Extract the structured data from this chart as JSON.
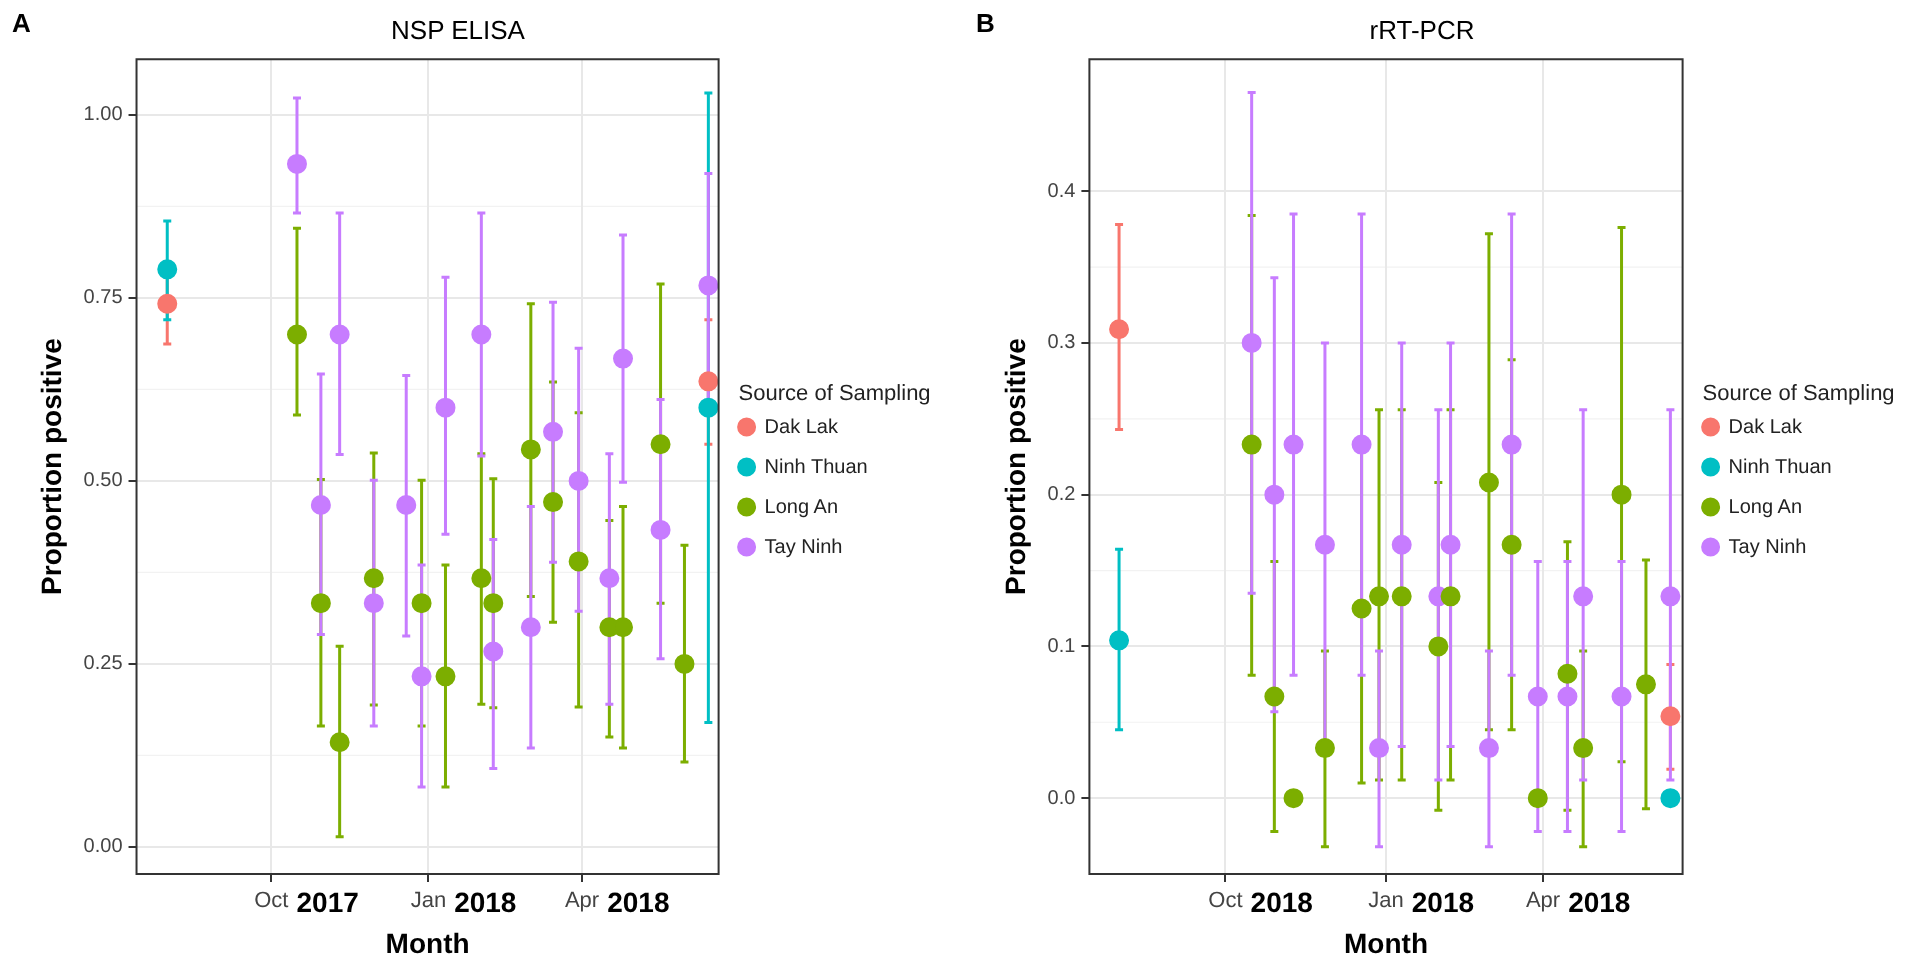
{
  "chart_data": [
    {
      "type": "scatter",
      "title": "NSP ELISA",
      "xlabel": "Month",
      "ylabel": "Proportion positive",
      "legend_title": "Source of Sampling",
      "annotations": [
        "A",
        "2017",
        "2018",
        "2018"
      ],
      "legend": "right",
      "grid": true,
      "marker": "circle",
      "xlim": [
        "2017-07-14",
        "2018-06-20"
      ],
      "ylim": [
        -0.037,
        1.076
      ],
      "yticks": [
        {
          "value": 0,
          "label": "0.00"
        },
        {
          "value": 0.25,
          "label": "0.25"
        },
        {
          "value": 0.5,
          "label": "0.50"
        },
        {
          "value": 0.75,
          "label": "0.75"
        },
        {
          "value": 1,
          "label": "1.00"
        }
      ],
      "xticks": [
        {
          "value": "2017-10-01",
          "label": "Oct"
        },
        {
          "value": "2018-01-01",
          "label": "Jan"
        },
        {
          "value": "2018-04-01",
          "label": "Apr"
        }
      ],
      "series": [
        {
          "name": "Dak Lak",
          "color": "#f8766d",
          "x": [
            "2017-08-01",
            "2018-06-14"
          ],
          "values": [
            0.742,
            0.636
          ],
          "errors": [
            [
              0.687,
              0.795
            ],
            [
              0.55,
              0.72
            ]
          ]
        },
        {
          "name": "Ninh Thuan",
          "color": "#00bfc4",
          "x": [
            "2017-08-01",
            "2018-06-14"
          ],
          "values": [
            0.789,
            0.6
          ],
          "errors": [
            [
              0.72,
              0.855
            ],
            [
              0.17,
              1.03
            ]
          ]
        },
        {
          "name": "Long An",
          "color": "#7cae00",
          "x": [
            "2017-10-16",
            "2017-10-30",
            "2017-11-10",
            "2017-11-30",
            "2017-12-28",
            "2018-01-11",
            "2018-02-01",
            "2018-02-08",
            "2018-03-02",
            "2018-03-15",
            "2018-03-30",
            "2018-04-17",
            "2018-04-25",
            "2018-05-17",
            "2018-05-31"
          ],
          "values": [
            0.7,
            0.333,
            0.143,
            0.367,
            0.333,
            0.233,
            0.367,
            0.333,
            0.543,
            0.471,
            0.39,
            0.3,
            0.3,
            0.55,
            0.25
          ],
          "errors": [
            [
              0.59,
              0.845
            ],
            [
              0.165,
              0.502
            ],
            [
              0.014,
              0.274
            ],
            [
              0.194,
              0.538
            ],
            [
              0.165,
              0.501
            ],
            [
              0.082,
              0.385
            ],
            [
              0.195,
              0.537
            ],
            [
              0.19,
              0.503
            ],
            [
              0.342,
              0.742
            ],
            [
              0.307,
              0.635
            ],
            [
              0.191,
              0.593
            ],
            [
              0.15,
              0.446
            ],
            [
              0.135,
              0.465
            ],
            [
              0.333,
              0.769
            ],
            [
              0.116,
              0.412
            ]
          ]
        },
        {
          "name": "Tay Ninh",
          "color": "#c77cff",
          "x": [
            "2017-10-16",
            "2017-10-30",
            "2017-11-10",
            "2017-11-30",
            "2017-12-19",
            "2017-12-28",
            "2018-01-11",
            "2018-02-01",
            "2018-02-08",
            "2018-03-02",
            "2018-03-15",
            "2018-03-30",
            "2018-04-17",
            "2018-04-25",
            "2018-05-17",
            "2018-06-14"
          ],
          "values": [
            0.933,
            0.467,
            0.7,
            0.333,
            0.467,
            0.233,
            0.6,
            0.7,
            0.267,
            0.3,
            0.567,
            0.5,
            0.367,
            0.667,
            0.433,
            0.767
          ],
          "errors": [
            [
              0.866,
              1.023
            ],
            [
              0.29,
              0.646
            ],
            [
              0.536,
              0.866
            ],
            [
              0.165,
              0.501
            ],
            [
              0.288,
              0.644
            ],
            [
              0.082,
              0.385
            ],
            [
              0.427,
              0.778
            ],
            [
              0.534,
              0.866
            ],
            [
              0.107,
              0.42
            ],
            [
              0.135,
              0.465
            ],
            [
              0.389,
              0.744
            ],
            [
              0.322,
              0.681
            ],
            [
              0.195,
              0.537
            ],
            [
              0.498,
              0.836
            ],
            [
              0.257,
              0.611
            ],
            [
              0.61,
              0.92
            ]
          ]
        }
      ]
    },
    {
      "type": "scatter",
      "title": "rRT-PCR",
      "xlabel": "Month",
      "ylabel": "Proportion positive",
      "legend_title": "Source of Sampling",
      "annotations": [
        "B",
        "2018",
        "2018",
        "2018"
      ],
      "legend": "right",
      "grid": true,
      "marker": "circle",
      "xlim": [
        "2017-07-15",
        "2018-06-20"
      ],
      "ylim": [
        -0.05,
        0.487
      ],
      "yticks": [
        {
          "value": 0,
          "label": "0.0"
        },
        {
          "value": 0.1,
          "label": "0.1"
        },
        {
          "value": 0.2,
          "label": "0.2"
        },
        {
          "value": 0.3,
          "label": "0.3"
        },
        {
          "value": 0.4,
          "label": "0.4"
        }
      ],
      "xticks": [
        {
          "value": "2017-10-01",
          "label": "Oct"
        },
        {
          "value": "2018-01-01",
          "label": "Jan"
        },
        {
          "value": "2018-04-01",
          "label": "Apr"
        }
      ],
      "series": [
        {
          "name": "Dak Lak",
          "color": "#f8766d",
          "x": [
            "2017-08-01",
            "2018-06-13"
          ],
          "values": [
            0.309,
            0.054
          ],
          "errors": [
            [
              0.243,
              0.378
            ],
            [
              0.019,
              0.088
            ]
          ]
        },
        {
          "name": "Ninh Thuan",
          "color": "#00bfc4",
          "x": [
            "2017-08-01",
            "2018-06-13"
          ],
          "values": [
            0.104,
            0
          ],
          "errors": [
            [
              0.045,
              0.164
            ],
            null
          ]
        },
        {
          "name": "Long An",
          "color": "#7cae00",
          "x": [
            "2017-10-16",
            "2017-10-29",
            "2017-11-09",
            "2017-11-27",
            "2017-12-18",
            "2017-12-28",
            "2018-01-10",
            "2018-01-31",
            "2018-02-07",
            "2018-03-01",
            "2018-03-14",
            "2018-03-29",
            "2018-04-15",
            "2018-04-24",
            "2018-05-16",
            "2018-05-30"
          ],
          "values": [
            0.233,
            0.067,
            0,
            0.033,
            0.125,
            0.133,
            0.133,
            0.1,
            0.133,
            0.208,
            0.167,
            0,
            0.082,
            0.033,
            0.2,
            0.075
          ],
          "errors": [
            [
              0.081,
              0.384
            ],
            [
              -0.022,
              0.156
            ],
            null,
            [
              -0.032,
              0.097
            ],
            [
              0.01,
              0.23
            ],
            [
              0.012,
              0.256
            ],
            [
              0.012,
              0.256
            ],
            [
              -0.008,
              0.208
            ],
            [
              0.012,
              0.256
            ],
            [
              0.045,
              0.372
            ],
            [
              0.045,
              0.289
            ],
            null,
            [
              -0.008,
              0.169
            ],
            [
              -0.032,
              0.097
            ],
            [
              0.024,
              0.376
            ],
            [
              -0.007,
              0.157
            ]
          ]
        },
        {
          "name": "Tay Ninh",
          "color": "#c77cff",
          "x": [
            "2017-10-16",
            "2017-10-29",
            "2017-11-09",
            "2017-11-27",
            "2017-12-18",
            "2017-12-28",
            "2018-01-10",
            "2018-01-31",
            "2018-02-07",
            "2018-03-01",
            "2018-03-14",
            "2018-03-29",
            "2018-04-15",
            "2018-04-24",
            "2018-05-16",
            "2018-06-13"
          ],
          "values": [
            0.3,
            0.2,
            0.233,
            0.167,
            0.233,
            0.033,
            0.167,
            0.133,
            0.167,
            0.033,
            0.233,
            0.067,
            0.067,
            0.133,
            0.067,
            0.133
          ],
          "errors": [
            [
              0.135,
              0.465
            ],
            [
              0.057,
              0.343
            ],
            [
              0.081,
              0.385
            ],
            [
              0.035,
              0.3
            ],
            [
              0.081,
              0.385
            ],
            [
              -0.032,
              0.097
            ],
            [
              0.034,
              0.3
            ],
            [
              0.012,
              0.256
            ],
            [
              0.034,
              0.3
            ],
            [
              -0.032,
              0.097
            ],
            [
              0.081,
              0.385
            ],
            [
              -0.022,
              0.156
            ],
            [
              -0.022,
              0.156
            ],
            [
              0.012,
              0.256
            ],
            [
              -0.022,
              0.156
            ],
            [
              0.012,
              0.256
            ]
          ]
        }
      ]
    }
  ]
}
